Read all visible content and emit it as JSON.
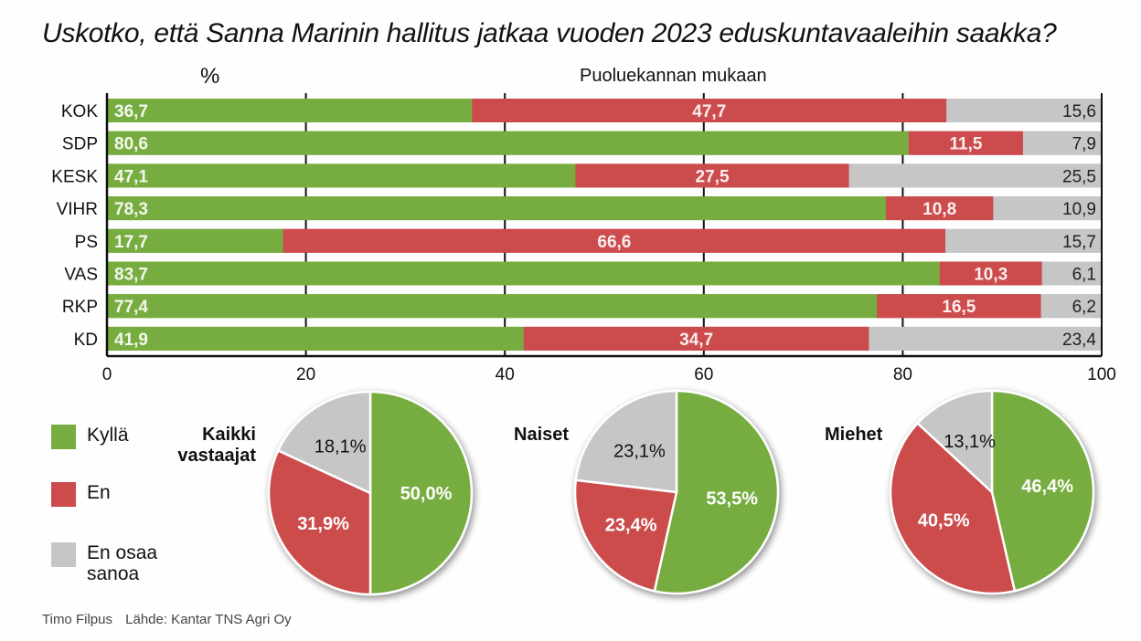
{
  "title": "Uskotko, että Sanna Marinin hallitus jatkaa vuoden 2023 eduskuntavaaleihin saakka?",
  "colors": {
    "yes": "#77ad40",
    "no": "#cc4b4c",
    "dk": "#c6c6c6"
  },
  "legend": [
    {
      "label": "Kyllä",
      "key": "yes"
    },
    {
      "label": "En",
      "key": "no"
    },
    {
      "label": "En osaa sanoa",
      "key": "dk"
    }
  ],
  "footer": {
    "author": "Timo Filpus",
    "source": "Lähde: Kantar TNS Agri Oy"
  },
  "chart_data": [
    {
      "type": "bar",
      "stacked": true,
      "orientation": "horizontal",
      "title": "Puoluekannan mukaan",
      "unit_label": "%",
      "xlim": [
        0,
        100
      ],
      "xticks": [
        "0",
        "20",
        "40",
        "60",
        "80",
        "100"
      ],
      "categories": [
        "KOK",
        "SDP",
        "KESK",
        "VIHR",
        "PS",
        "VAS",
        "RKP",
        "KD"
      ],
      "series": [
        {
          "name": "Kyllä",
          "key": "yes",
          "values": [
            36.7,
            80.6,
            47.1,
            78.3,
            17.7,
            83.7,
            77.4,
            41.9
          ],
          "labels": [
            "36,7",
            "80,6",
            "47,1",
            "78,3",
            "17,7",
            "83,7",
            "77,4",
            "41,9"
          ]
        },
        {
          "name": "En",
          "key": "no",
          "values": [
            47.7,
            11.5,
            27.5,
            10.8,
            66.6,
            10.3,
            16.5,
            34.7
          ],
          "labels": [
            "47,7",
            "11,5",
            "27,5",
            "10,8",
            "66,6",
            "10,3",
            "16,5",
            "34,7"
          ]
        },
        {
          "name": "En osaa sanoa",
          "key": "dk",
          "values": [
            15.6,
            7.9,
            25.5,
            10.9,
            15.7,
            6.1,
            6.2,
            23.4
          ],
          "labels": [
            "15,6",
            "7,9",
            "25,5",
            "10,9",
            "15,7",
            "6,1",
            "6,2",
            "23,4"
          ]
        }
      ]
    },
    {
      "type": "pie",
      "title": "Kaikki vastaajat",
      "title_lines": [
        "Kaikki",
        "vastaajat"
      ],
      "slices": [
        {
          "name": "Kyllä",
          "key": "yes",
          "value": 50.0,
          "label": "50,0%"
        },
        {
          "name": "En",
          "key": "no",
          "value": 31.9,
          "label": "31,9%"
        },
        {
          "name": "En osaa sanoa",
          "key": "dk",
          "value": 18.1,
          "label": "18,1%"
        }
      ]
    },
    {
      "type": "pie",
      "title": "Naiset",
      "title_lines": [
        "Naiset"
      ],
      "slices": [
        {
          "name": "Kyllä",
          "key": "yes",
          "value": 53.5,
          "label": "53,5%"
        },
        {
          "name": "En",
          "key": "no",
          "value": 23.4,
          "label": "23,4%"
        },
        {
          "name": "En osaa sanoa",
          "key": "dk",
          "value": 23.1,
          "label": "23,1%"
        }
      ]
    },
    {
      "type": "pie",
      "title": "Miehet",
      "title_lines": [
        "Miehet"
      ],
      "slices": [
        {
          "name": "Kyllä",
          "key": "yes",
          "value": 46.4,
          "label": "46,4%"
        },
        {
          "name": "En",
          "key": "no",
          "value": 40.5,
          "label": "40,5%"
        },
        {
          "name": "En osaa sanoa",
          "key": "dk",
          "value": 13.1,
          "label": "13,1%"
        }
      ]
    }
  ]
}
